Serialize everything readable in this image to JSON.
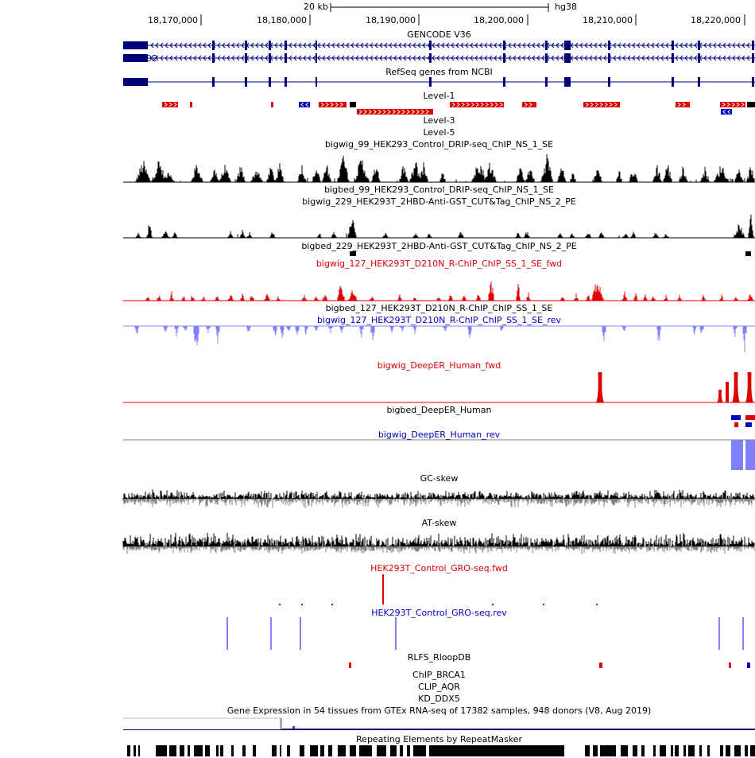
{
  "ruler": {
    "scale_label": "20 kb",
    "assembly": "hg38",
    "ticks": [
      "18,170,000",
      "18,180,000",
      "18,190,000",
      "18,200,000",
      "18,210,000",
      "18,220,000"
    ]
  },
  "tracks": {
    "gencode": {
      "label": "GENCODE V36",
      "gene": "BEND2"
    },
    "refseq": {
      "label": "RefSeq genes from NCBI"
    },
    "level1": {
      "label": "Level-1"
    },
    "level3": {
      "label": "Level-3"
    },
    "level5": {
      "label": "Level-5"
    },
    "drip_bigwig": {
      "label": "bigwig_99_HEK293_Control_DRIP-seq_ChIP_NS_1_SE"
    },
    "drip_bigbed": {
      "label": "bigbed_99_HEK293_Control_DRIP-seq_ChIP_NS_1_SE"
    },
    "cuttag_bigwig": {
      "label": "bigwig_229_HEK293T_2HBD-Anti-GST_CUT&Tag_ChIP_NS_2_PE"
    },
    "cuttag_bigbed": {
      "label": "bigbed_229_HEK293T_2HBD-Anti-GST_CUT&Tag_ChIP_NS_2_PE"
    },
    "rchip_fwd": {
      "label": "bigwig_127_HEK293T_D210N_R-ChIP_ChIP_SS_1_SE_fwd"
    },
    "rchip_bigbed": {
      "label": "bigbed_127_HEK293T_D210N_R-ChIP_ChIP_SS_1_SE"
    },
    "rchip_rev": {
      "label": "bigwig_127_HEK293T_D210N_R-ChIP_ChIP_SS_1_SE_rev"
    },
    "deeper_fwd": {
      "label": "bigwig_DeepER_Human_fwd"
    },
    "deeper_bigbed": {
      "label": "bigbed_DeepER_Human"
    },
    "deeper_rev": {
      "label": "bigwig_DeepER_Human_rev"
    },
    "gc_skew": {
      "label": "GC-skew"
    },
    "at_skew": {
      "label": "AT-skew"
    },
    "gro_fwd": {
      "label": "HEK293T_Control_GRO-seq.fwd"
    },
    "gro_rev": {
      "label": "HEK293T_Control_GRO-seq.rev"
    },
    "rlfs": {
      "label": "RLFS_RloopDB"
    },
    "chip_brca1": {
      "label": "ChIP_BRCA1"
    },
    "clip_aqr": {
      "label": "CLIP_AQR"
    },
    "kd_ddx5": {
      "label": "KD_DDX5"
    },
    "gtex": {
      "label": "Gene Expression in 54 tissues from GTEx RNA-seq of 17382 samples, 948 donors (V8, Aug 2019)"
    },
    "repeatmasker": {
      "label": "Repeating Elements by RepeatMasker"
    }
  },
  "colors": {
    "black": "#000000",
    "red": "#e00000",
    "blue": "#0000c0",
    "navy": "#00007a",
    "light_blue": "#8080ff",
    "gray": "#808080"
  }
}
